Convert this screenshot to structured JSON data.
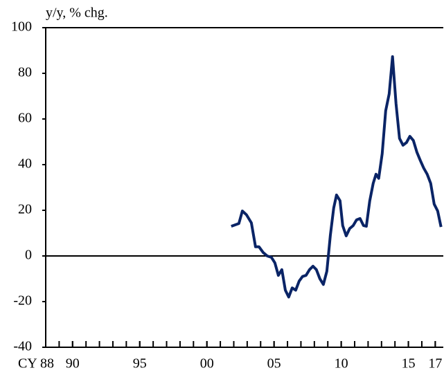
{
  "chart_data": {
    "type": "line",
    "y_label": "y/y, % chg.",
    "x": [
      2001.81,
      2002.38,
      2002.64,
      2002.95,
      2003.31,
      2003.62,
      2003.88,
      2004.19,
      2004.49,
      2004.8,
      2005.06,
      2005.32,
      2005.58,
      2005.84,
      2006.09,
      2006.35,
      2006.61,
      2006.87,
      2007.12,
      2007.38,
      2007.64,
      2007.9,
      2008.15,
      2008.41,
      2008.67,
      2008.93,
      2009.19,
      2009.44,
      2009.65,
      2009.91,
      2010.11,
      2010.37,
      2010.63,
      2010.89,
      2011.14,
      2011.4,
      2011.66,
      2011.87,
      2012.12,
      2012.38,
      2012.59,
      2012.79,
      2013.05,
      2013.31,
      2013.57,
      2013.82,
      2014.08,
      2014.34,
      2014.6,
      2014.86,
      2015.11,
      2015.37,
      2015.63,
      2015.89,
      2016.14,
      2016.4,
      2016.66,
      2016.92,
      2017.18,
      2017.43
    ],
    "series": [
      {
        "color": "#0a2466",
        "values": [
          13,
          14.2,
          19.7,
          18,
          14.5,
          4,
          4,
          1.5,
          0,
          -0.6,
          -3,
          -8.5,
          -6,
          -15,
          -18,
          -14,
          -15,
          -11,
          -9,
          -8.5,
          -6,
          -4.5,
          -6,
          -10,
          -12.5,
          -6.7,
          9,
          21,
          26.7,
          24.2,
          13.3,
          8.8,
          12,
          13.3,
          15.8,
          16.4,
          13.3,
          13,
          24,
          31.8,
          35.8,
          34,
          44.8,
          63.6,
          71,
          87.3,
          66.7,
          51.5,
          48.5,
          49.7,
          52.4,
          50.6,
          45.5,
          41.8,
          38.5,
          35.8,
          31.8,
          22.7,
          19.7,
          12.7
        ]
      }
    ],
    "xlim": [
      1988,
      2017.6
    ],
    "xticks": [
      {
        "value": 1988,
        "label": "CY 88"
      },
      {
        "value": 1990,
        "label": "90"
      },
      {
        "value": 1995,
        "label": "95"
      },
      {
        "value": 2000,
        "label": "00"
      },
      {
        "value": 2005,
        "label": "05"
      },
      {
        "value": 2010,
        "label": "10"
      },
      {
        "value": 2015,
        "label": "15"
      },
      {
        "value": 2017,
        "label": "17"
      }
    ],
    "xminorticks": [
      1988,
      1989,
      1990,
      1991,
      1992,
      1993,
      1994,
      1995,
      1996,
      1997,
      1998,
      1999,
      2000,
      2001,
      2002,
      2003,
      2004,
      2005,
      2006,
      2007,
      2008,
      2009,
      2010,
      2011,
      2012,
      2013,
      2014,
      2015,
      2016,
      2017
    ],
    "ylim": [
      -40,
      100
    ],
    "yticks": [
      -40,
      -20,
      0,
      20,
      40,
      60,
      80,
      100
    ],
    "zero_line": true
  }
}
